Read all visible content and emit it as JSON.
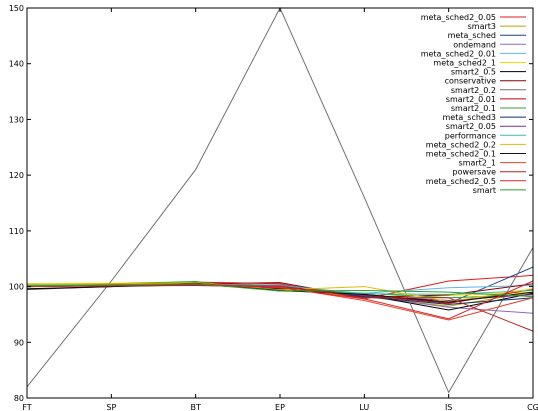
{
  "chart_data": {
    "type": "line",
    "title": "",
    "xlabel": "",
    "ylabel": "",
    "categories": [
      "FT",
      "SP",
      "BT",
      "EP",
      "LU",
      "IS",
      "CG"
    ],
    "ylim": [
      80,
      150
    ],
    "yticks": [
      80,
      90,
      100,
      110,
      120,
      130,
      140,
      150
    ],
    "grid": false,
    "legend_position": "top-right",
    "series": [
      {
        "name": "meta_sched2_0.05",
        "color": "#e41a1c",
        "values": [
          100.0,
          100.3,
          100.8,
          100.5,
          97.8,
          101.0,
          102.0
        ]
      },
      {
        "name": "smart3",
        "color": "#b8a800",
        "values": [
          100.3,
          100.4,
          100.6,
          100.2,
          98.2,
          96.5,
          99.0
        ]
      },
      {
        "name": "meta_sched",
        "color": "#1f3a93",
        "values": [
          100.0,
          100.2,
          100.5,
          99.6,
          98.6,
          97.0,
          103.5
        ]
      },
      {
        "name": "ondemand",
        "color": "#9467bd",
        "values": [
          100.1,
          100.1,
          100.3,
          100.3,
          98.3,
          96.3,
          95.2
        ]
      },
      {
        "name": "meta_sched2_0.01",
        "color": "#5fb7e5",
        "values": [
          100.2,
          100.3,
          100.4,
          99.8,
          98.8,
          99.8,
          100.2
        ]
      },
      {
        "name": "meta_sched2_1",
        "color": "#ffd400",
        "values": [
          100.5,
          100.6,
          100.8,
          99.5,
          98.2,
          98.4,
          99.0
        ]
      },
      {
        "name": "smart2_0.5",
        "color": "#000000",
        "values": [
          99.6,
          100.0,
          100.3,
          99.6,
          98.5,
          95.8,
          98.8
        ]
      },
      {
        "name": "conservative",
        "color": "#8b0000",
        "values": [
          100.4,
          100.3,
          100.5,
          100.7,
          98.0,
          98.5,
          100.5
        ]
      },
      {
        "name": "smart2_0.2",
        "color": "#707070",
        "values": [
          82.0,
          101.0,
          121.0,
          150.0,
          116.0,
          81.0,
          107.0
        ]
      },
      {
        "name": "smart2_0.01",
        "color": "#c00000",
        "values": [
          100.2,
          100.4,
          100.7,
          100.1,
          98.4,
          97.0,
          99.5
        ]
      },
      {
        "name": "smart2_0.1",
        "color": "#33a02c",
        "values": [
          100.3,
          100.5,
          100.9,
          99.2,
          98.8,
          98.0,
          98.5
        ]
      },
      {
        "name": "meta_sched3",
        "color": "#0b2f6b",
        "values": [
          100.0,
          100.2,
          100.4,
          99.9,
          98.2,
          96.8,
          98.0
        ]
      },
      {
        "name": "smart2_0.05",
        "color": "#7b2d8b",
        "values": [
          100.2,
          100.2,
          100.3,
          99.7,
          98.4,
          97.5,
          98.6
        ]
      },
      {
        "name": "performance",
        "color": "#3cb8b8",
        "values": [
          100.3,
          100.3,
          100.5,
          100.2,
          98.7,
          98.6,
          99.3
        ]
      },
      {
        "name": "meta_sched2_0.2",
        "color": "#e6b800",
        "values": [
          100.4,
          100.5,
          100.7,
          99.4,
          100.0,
          97.3,
          99.6
        ]
      },
      {
        "name": "meta_sched2_0.1",
        "color": "#111111",
        "values": [
          99.5,
          100.0,
          100.6,
          99.3,
          98.6,
          97.2,
          99.0
        ]
      },
      {
        "name": "smart2_1",
        "color": "#e8412a",
        "values": [
          100.1,
          100.2,
          100.2,
          99.9,
          97.5,
          94.0,
          98.0
        ]
      },
      {
        "name": "powersave",
        "color": "#b22222",
        "values": [
          100.0,
          100.1,
          100.2,
          100.1,
          98.0,
          98.0,
          92.0
        ]
      },
      {
        "name": "meta_sched2_0.5",
        "color": "#d62728",
        "values": [
          100.0,
          100.2,
          100.5,
          99.8,
          97.8,
          94.2,
          101.0
        ]
      },
      {
        "name": "smart",
        "color": "#2ca02c",
        "values": [
          100.1,
          100.3,
          100.5,
          99.2,
          99.3,
          99.0,
          98.2
        ]
      }
    ]
  }
}
